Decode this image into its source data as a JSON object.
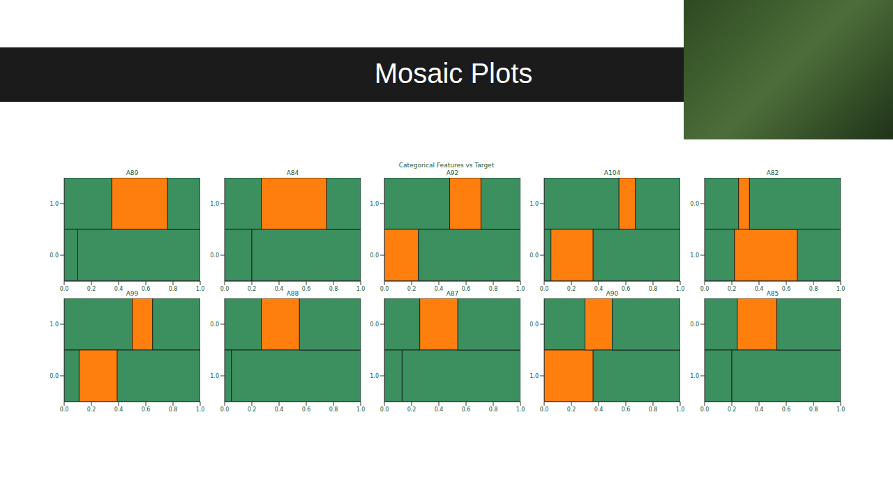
{
  "title": "Mosaic Plots",
  "subtitle": "Categorical Features vs Target",
  "chart_data": [
    {
      "type": "bar",
      "orientation": "horizontal",
      "stacked": true,
      "title": "A89",
      "categories": [
        "1.0",
        "0.0"
      ],
      "xlim": [
        0,
        1
      ],
      "xticks": [
        {
          "value": 0,
          "label": "0.0"
        },
        {
          "value": 0.2,
          "label": "0.2"
        },
        {
          "value": 0.4,
          "label": "0.4"
        },
        {
          "value": 0.6,
          "label": "0.6"
        },
        {
          "value": 0.8,
          "label": "0.8"
        },
        {
          "value": 1,
          "label": "1.0"
        }
      ],
      "series": [
        {
          "values": [
            0.35,
            0.1
          ],
          "colors": [
            "#3c8f5f",
            "#3c8f5f"
          ]
        },
        {
          "values": [
            0.41,
            0.9
          ],
          "colors": [
            "#ff7f0e",
            "#3c8f5f"
          ]
        },
        {
          "values": [
            0.24,
            null
          ],
          "colors": [
            "#3c8f5f",
            null
          ]
        }
      ]
    },
    {
      "type": "bar",
      "orientation": "horizontal",
      "stacked": true,
      "title": "A84",
      "categories": [
        "1.0",
        "0.0"
      ],
      "xlim": [
        0,
        1
      ],
      "xticks": [
        {
          "value": 0,
          "label": "0.0"
        },
        {
          "value": 0.2,
          "label": "0.2"
        },
        {
          "value": 0.4,
          "label": "0.4"
        },
        {
          "value": 0.6,
          "label": "0.6"
        },
        {
          "value": 0.8,
          "label": "0.8"
        },
        {
          "value": 1,
          "label": "1.0"
        }
      ],
      "series": [
        {
          "values": [
            0.27,
            0.2
          ],
          "colors": [
            "#3c8f5f",
            "#3c8f5f"
          ]
        },
        {
          "values": [
            0.48,
            0.8
          ],
          "colors": [
            "#ff7f0e",
            "#3c8f5f"
          ]
        },
        {
          "values": [
            0.25,
            null
          ],
          "colors": [
            "#3c8f5f",
            null
          ]
        }
      ]
    },
    {
      "type": "bar",
      "orientation": "horizontal",
      "stacked": true,
      "title": "A92",
      "categories": [
        "1.0",
        "0.0"
      ],
      "xlim": [
        0,
        1
      ],
      "xticks": [
        {
          "value": 0,
          "label": "0.0"
        },
        {
          "value": 0.2,
          "label": "0.2"
        },
        {
          "value": 0.4,
          "label": "0.4"
        },
        {
          "value": 0.6,
          "label": "0.6"
        },
        {
          "value": 0.8,
          "label": "0.8"
        },
        {
          "value": 1,
          "label": "1.0"
        }
      ],
      "series": [
        {
          "values": [
            0.48,
            0.25
          ],
          "colors": [
            "#3c8f5f",
            "#ff7f0e"
          ]
        },
        {
          "values": [
            0.23,
            0.75
          ],
          "colors": [
            "#ff7f0e",
            "#3c8f5f"
          ]
        },
        {
          "values": [
            0.29,
            null
          ],
          "colors": [
            "#3c8f5f",
            null
          ]
        }
      ]
    },
    {
      "type": "bar",
      "orientation": "horizontal",
      "stacked": true,
      "title": "A104",
      "categories": [
        "1.0",
        "0.0"
      ],
      "xlim": [
        0,
        1
      ],
      "xticks": [
        {
          "value": 0,
          "label": "0.0"
        },
        {
          "value": 0.2,
          "label": "0.2"
        },
        {
          "value": 0.4,
          "label": "0.4"
        },
        {
          "value": 0.6,
          "label": "0.6"
        },
        {
          "value": 0.8,
          "label": "0.8"
        },
        {
          "value": 1,
          "label": "1.0"
        }
      ],
      "series": [
        {
          "values": [
            0.55,
            0.05
          ],
          "colors": [
            "#3c8f5f",
            "#3c8f5f"
          ]
        },
        {
          "values": [
            0.12,
            0.31
          ],
          "colors": [
            "#ff7f0e",
            "#ff7f0e"
          ]
        },
        {
          "values": [
            0.33,
            0.64
          ],
          "colors": [
            "#3c8f5f",
            "#3c8f5f"
          ]
        }
      ]
    },
    {
      "type": "bar",
      "orientation": "horizontal",
      "stacked": true,
      "title": "A82",
      "categories": [
        "0.0",
        "1.0"
      ],
      "xlim": [
        0,
        1
      ],
      "xticks": [
        {
          "value": 0,
          "label": "0.0"
        },
        {
          "value": 0.2,
          "label": "0.2"
        },
        {
          "value": 0.4,
          "label": "0.4"
        },
        {
          "value": 0.6,
          "label": "0.6"
        },
        {
          "value": 0.8,
          "label": "0.8"
        },
        {
          "value": 1,
          "label": "1.0"
        }
      ],
      "series": [
        {
          "values": [
            0.25,
            0.22
          ],
          "colors": [
            "#3c8f5f",
            "#3c8f5f"
          ]
        },
        {
          "values": [
            0.08,
            0.46
          ],
          "colors": [
            "#ff7f0e",
            "#ff7f0e"
          ]
        },
        {
          "values": [
            0.67,
            0.32
          ],
          "colors": [
            "#3c8f5f",
            "#3c8f5f"
          ]
        }
      ]
    },
    {
      "type": "bar",
      "orientation": "horizontal",
      "stacked": true,
      "title": "A99",
      "categories": [
        "1.0",
        "0.0"
      ],
      "xlim": [
        0,
        1
      ],
      "xticks": [
        {
          "value": 0,
          "label": "0.0"
        },
        {
          "value": 0.2,
          "label": "0.2"
        },
        {
          "value": 0.4,
          "label": "0.4"
        },
        {
          "value": 0.6,
          "label": "0.6"
        },
        {
          "value": 0.8,
          "label": "0.8"
        },
        {
          "value": 1,
          "label": "1.0"
        }
      ],
      "series": [
        {
          "values": [
            0.5,
            0.11
          ],
          "colors": [
            "#3c8f5f",
            "#3c8f5f"
          ]
        },
        {
          "values": [
            0.15,
            0.28
          ],
          "colors": [
            "#ff7f0e",
            "#ff7f0e"
          ]
        },
        {
          "values": [
            0.35,
            0.61
          ],
          "colors": [
            "#3c8f5f",
            "#3c8f5f"
          ]
        }
      ]
    },
    {
      "type": "bar",
      "orientation": "horizontal",
      "stacked": true,
      "title": "A88",
      "categories": [
        "0.0",
        "1.0"
      ],
      "xlim": [
        0,
        1
      ],
      "xticks": [
        {
          "value": 0,
          "label": "0.0"
        },
        {
          "value": 0.2,
          "label": "0.2"
        },
        {
          "value": 0.4,
          "label": "0.4"
        },
        {
          "value": 0.6,
          "label": "0.6"
        },
        {
          "value": 0.8,
          "label": "0.8"
        },
        {
          "value": 1,
          "label": "1.0"
        }
      ],
      "series": [
        {
          "values": [
            0.27,
            0.05
          ],
          "colors": [
            "#3c8f5f",
            "#3c8f5f"
          ]
        },
        {
          "values": [
            0.28,
            0.95
          ],
          "colors": [
            "#ff7f0e",
            "#3c8f5f"
          ]
        },
        {
          "values": [
            0.45,
            null
          ],
          "colors": [
            "#3c8f5f",
            null
          ]
        }
      ]
    },
    {
      "type": "bar",
      "orientation": "horizontal",
      "stacked": true,
      "title": "A87",
      "categories": [
        "0.0",
        "1.0"
      ],
      "xlim": [
        0,
        1
      ],
      "xticks": [
        {
          "value": 0,
          "label": "0.0"
        },
        {
          "value": 0.2,
          "label": "0.2"
        },
        {
          "value": 0.4,
          "label": "0.4"
        },
        {
          "value": 0.6,
          "label": "0.6"
        },
        {
          "value": 0.8,
          "label": "0.8"
        },
        {
          "value": 1,
          "label": "1.0"
        }
      ],
      "series": [
        {
          "values": [
            0.26,
            0.13
          ],
          "colors": [
            "#3c8f5f",
            "#3c8f5f"
          ]
        },
        {
          "values": [
            0.28,
            0.87
          ],
          "colors": [
            "#ff7f0e",
            "#3c8f5f"
          ]
        },
        {
          "values": [
            0.46,
            null
          ],
          "colors": [
            "#3c8f5f",
            null
          ]
        }
      ]
    },
    {
      "type": "bar",
      "orientation": "horizontal",
      "stacked": true,
      "title": "A90",
      "categories": [
        "0.0",
        "1.0"
      ],
      "xlim": [
        0,
        1
      ],
      "xticks": [
        {
          "value": 0,
          "label": "0.0"
        },
        {
          "value": 0.2,
          "label": "0.2"
        },
        {
          "value": 0.4,
          "label": "0.4"
        },
        {
          "value": 0.6,
          "label": "0.6"
        },
        {
          "value": 0.8,
          "label": "0.8"
        },
        {
          "value": 1,
          "label": "1.0"
        }
      ],
      "series": [
        {
          "values": [
            0.3,
            0.36
          ],
          "colors": [
            "#3c8f5f",
            "#ff7f0e"
          ]
        },
        {
          "values": [
            0.2,
            0.64
          ],
          "colors": [
            "#ff7f0e",
            "#3c8f5f"
          ]
        },
        {
          "values": [
            0.5,
            null
          ],
          "colors": [
            "#3c8f5f",
            null
          ]
        }
      ]
    },
    {
      "type": "bar",
      "orientation": "horizontal",
      "stacked": true,
      "title": "A85",
      "categories": [
        "0.0",
        "1.0"
      ],
      "xlim": [
        0,
        1
      ],
      "xticks": [
        {
          "value": 0,
          "label": "0.0"
        },
        {
          "value": 0.2,
          "label": "0.2"
        },
        {
          "value": 0.4,
          "label": "0.4"
        },
        {
          "value": 0.6,
          "label": "0.6"
        },
        {
          "value": 0.8,
          "label": "0.8"
        },
        {
          "value": 1,
          "label": "1.0"
        }
      ],
      "series": [
        {
          "values": [
            0.24,
            0.2
          ],
          "colors": [
            "#3c8f5f",
            "#3c8f5f"
          ]
        },
        {
          "values": [
            0.29,
            0.8
          ],
          "colors": [
            "#ff7f0e",
            "#3c8f5f"
          ]
        },
        {
          "values": [
            0.47,
            null
          ],
          "colors": [
            "#3c8f5f",
            null
          ]
        }
      ]
    }
  ]
}
